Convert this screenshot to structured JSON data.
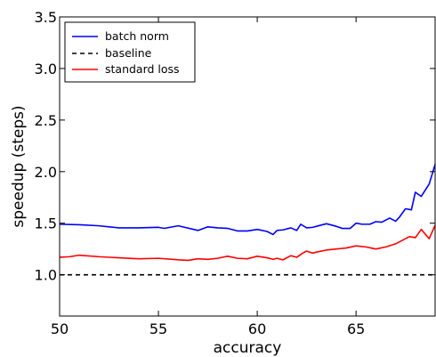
{
  "chart_data": {
    "type": "line",
    "title": "",
    "xlabel": "accuracy",
    "ylabel": "speedup (steps)",
    "xlim": [
      50,
      69
    ],
    "ylim": [
      0.6,
      3.5
    ],
    "xticks": [
      50,
      55,
      60,
      65
    ],
    "yticks": [
      1.0,
      1.5,
      2.0,
      2.5,
      3.0,
      3.5
    ],
    "x_tick_labels": [
      "50",
      "55",
      "60",
      "65"
    ],
    "y_tick_labels": [
      "1.0",
      "1.5",
      "2.0",
      "2.5",
      "3.0",
      "3.5"
    ],
    "grid": false,
    "legend_position": "top-left",
    "series": [
      {
        "name": "batch norm",
        "color": "#0000ff",
        "style": "solid",
        "x": [
          50,
          51,
          52,
          52.5,
          53,
          54,
          55,
          55.3,
          56,
          57,
          57.5,
          58,
          58.5,
          59,
          59.5,
          60,
          60.5,
          60.8,
          61,
          61.3,
          61.7,
          62,
          62.2,
          62.5,
          62.8,
          63,
          63.5,
          64,
          64.3,
          64.7,
          65,
          65.3,
          65.7,
          66,
          66.3,
          66.7,
          67,
          67.2,
          67.5,
          67.8,
          68,
          68.3,
          68.7,
          69
        ],
        "y": [
          1.49,
          1.485,
          1.475,
          1.465,
          1.455,
          1.455,
          1.46,
          1.45,
          1.475,
          1.43,
          1.465,
          1.455,
          1.45,
          1.425,
          1.425,
          1.44,
          1.42,
          1.39,
          1.43,
          1.435,
          1.455,
          1.43,
          1.49,
          1.455,
          1.46,
          1.47,
          1.495,
          1.47,
          1.45,
          1.45,
          1.5,
          1.49,
          1.49,
          1.515,
          1.51,
          1.55,
          1.52,
          1.56,
          1.64,
          1.63,
          1.8,
          1.76,
          1.88,
          2.07
        ]
      },
      {
        "name": "baseline",
        "color": "#000000",
        "style": "dashed",
        "x": [
          50,
          69
        ],
        "y": [
          1.0,
          1.0
        ]
      },
      {
        "name": "standard loss",
        "color": "#ff0000",
        "style": "solid",
        "x": [
          50,
          50.5,
          51,
          52,
          53,
          54,
          55,
          56,
          56.5,
          57,
          57.5,
          58,
          58.5,
          59,
          59.5,
          60,
          60.5,
          60.8,
          61,
          61.3,
          61.7,
          62,
          62.3,
          62.5,
          62.8,
          63,
          63.5,
          64,
          64.5,
          65,
          65.5,
          66,
          66.5,
          67,
          67.3,
          67.7,
          68,
          68.3,
          68.7,
          69
        ],
        "y": [
          1.17,
          1.175,
          1.19,
          1.175,
          1.165,
          1.155,
          1.16,
          1.145,
          1.14,
          1.155,
          1.15,
          1.16,
          1.18,
          1.16,
          1.155,
          1.18,
          1.165,
          1.15,
          1.16,
          1.145,
          1.185,
          1.17,
          1.21,
          1.23,
          1.21,
          1.22,
          1.24,
          1.25,
          1.26,
          1.28,
          1.27,
          1.25,
          1.27,
          1.3,
          1.33,
          1.37,
          1.36,
          1.44,
          1.35,
          1.48
        ]
      }
    ]
  }
}
